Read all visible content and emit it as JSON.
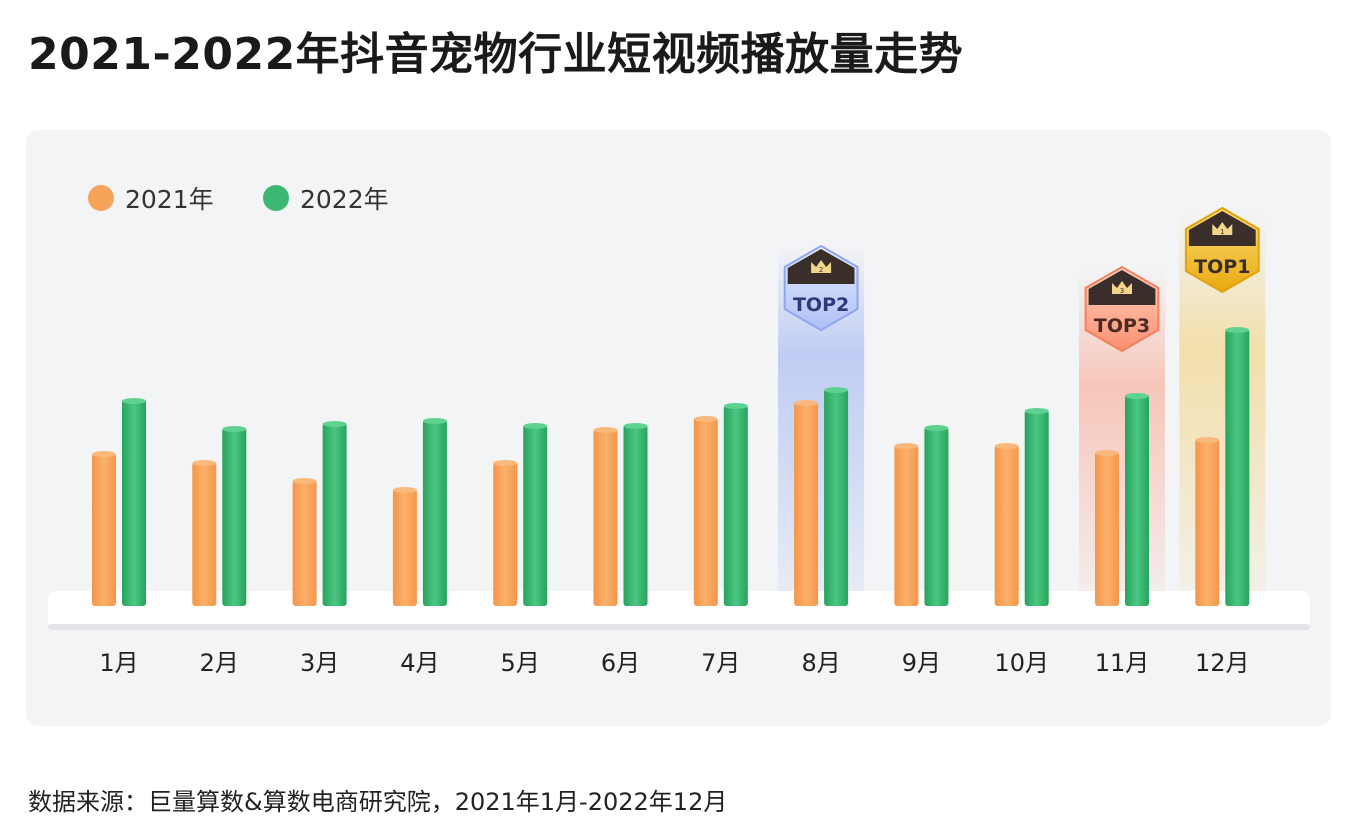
{
  "title": "2021-2022年抖音宠物行业短视频播放量走势",
  "source": "数据来源：巨量算数&算数电商研究院，2021年1月-2022年12月",
  "colors": {
    "s2021": "#f7a45a",
    "s2022": "#3db872",
    "top1": "#f2b71f",
    "top2": "#7f9cf0",
    "top3": "#fb8e6e",
    "badge_dark": "#3a2e2a"
  },
  "chart_data": {
    "type": "bar",
    "title": "2021-2022年抖音宠物行业短视频播放量走势",
    "categories": [
      "1月",
      "2月",
      "3月",
      "4月",
      "5月",
      "6月",
      "7月",
      "8月",
      "9月",
      "10月",
      "11月",
      "12月"
    ],
    "series": [
      {
        "name": "2021年",
        "values": [
          153,
          144,
          126,
          117,
          144,
          177,
          188,
          204,
          161,
          161,
          154,
          167
        ]
      },
      {
        "name": "2022年",
        "values": [
          206,
          178,
          183,
          186,
          181,
          181,
          201,
          217,
          179,
          196,
          211,
          277
        ]
      }
    ],
    "ylim": [
      0,
      300
    ],
    "grid": false,
    "legend_position": "top-left",
    "highlights": [
      {
        "label": "TOP2",
        "rank": "2",
        "month": "8月"
      },
      {
        "label": "TOP3",
        "rank": "3",
        "month": "11月"
      },
      {
        "label": "TOP1",
        "rank": "1",
        "month": "12月"
      }
    ]
  }
}
